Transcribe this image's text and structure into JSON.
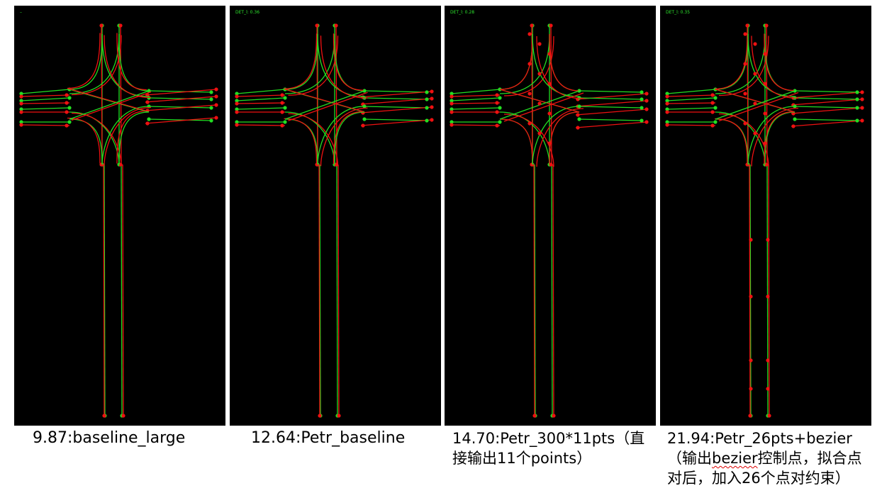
{
  "panels": [
    {
      "tag": "–",
      "caption": "9.87:baseline_large",
      "gt_color": "#22dd22",
      "pred_color": "#ee1111"
    },
    {
      "tag": "DET_l:  0.36",
      "caption": "12.64:Petr_baseline",
      "gt_color": "#22dd22",
      "pred_color": "#ee1111"
    },
    {
      "tag": "DET_l:  0.28",
      "caption": "14.70:Petr_300*11pts（直\n接输出11个points）",
      "gt_color": "#22dd22",
      "pred_color": "#ee1111"
    },
    {
      "tag": "DET_l:  0.35",
      "caption_a": "21.94:Petr_26pts+bezier\n（输出",
      "caption_b": "bezier",
      "caption_c": "控制点，拟合点\n对后，加入26个点对约束）",
      "gt_color": "#22dd22",
      "pred_color": "#ee1111"
    }
  ]
}
